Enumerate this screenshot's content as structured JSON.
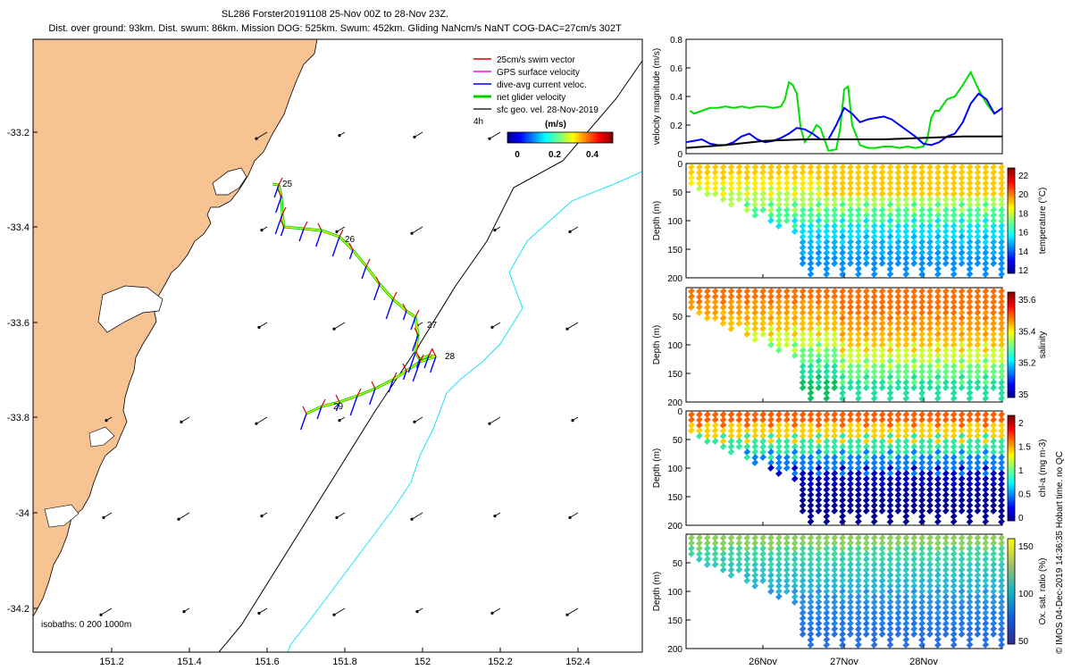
{
  "colors": {
    "land": "#f7c393",
    "track": "#000000",
    "ship_track": "#1ee0ff",
    "swim": "#d40000",
    "gps": "#ff00ff",
    "dac": "#0000ff",
    "net": "#00cc00",
    "sfc": "#000000"
  },
  "title": {
    "line1": "SL286 Forster20191108 25-Nov 00Z to 28-Nov 23Z.",
    "line2": "Dist. over ground: 93km. Dist. swum: 86km. Mission DOG: 525km. Swum: 452km. Gliding NaNcm/s NaNT COG-DAC=27cm/s 302T"
  },
  "map": {
    "x_ticks": [
      "151.2",
      "151.4",
      "151.6",
      "151.8",
      "152",
      "152.2",
      "152.4"
    ],
    "y_ticks": [
      "-33.2",
      "-33.4",
      "-33.6",
      "-33.8",
      "-34",
      "-34.2"
    ],
    "day_labels": [
      "25",
      "26",
      "27",
      "28",
      "29"
    ],
    "legend": {
      "items": [
        "25cm/s swim vector",
        "GPS surface velocity",
        "dive-avg current veloc.",
        "net glider velocity",
        "sfc geo. vel. 28-Nov-2019"
      ],
      "timestep": "4h",
      "units": "(m/s)",
      "colorbar_ticks": [
        "0",
        "0.2",
        "0.4"
      ]
    },
    "isobaths": "isobaths: 0   200  1000m"
  },
  "chart_data": [
    {
      "type": "line",
      "title": "",
      "ylabel": "velocity magnitude (m/s)",
      "ylim": [
        0,
        0.8
      ],
      "yticks": [
        "0",
        "0.2",
        "0.4",
        "0.6",
        "0.8"
      ],
      "x_range_days": [
        25.0,
        29.0
      ],
      "series": [
        {
          "name": "net glider velocity",
          "color": "#00dd00",
          "x": [
            25.05,
            25.1,
            25.2,
            25.3,
            25.4,
            25.5,
            25.6,
            25.7,
            25.8,
            25.9,
            26.0,
            26.1,
            26.2,
            26.25,
            26.3,
            26.35,
            26.4,
            26.45,
            26.5,
            26.6,
            26.65,
            26.7,
            26.8,
            26.9,
            26.95,
            27.0,
            27.05,
            27.1,
            27.2,
            27.3,
            27.4,
            27.5,
            27.6,
            27.7,
            27.8,
            27.9,
            28.0,
            28.05,
            28.1,
            28.15,
            28.2,
            28.3,
            28.4,
            28.5,
            28.6,
            28.7,
            28.8,
            28.9,
            28.95
          ],
          "values": [
            0.3,
            0.28,
            0.3,
            0.32,
            0.32,
            0.33,
            0.32,
            0.33,
            0.32,
            0.33,
            0.33,
            0.32,
            0.33,
            0.38,
            0.5,
            0.48,
            0.42,
            0.18,
            0.08,
            0.15,
            0.2,
            0.18,
            0.02,
            0.03,
            0.18,
            0.45,
            0.47,
            0.2,
            0.06,
            0.04,
            0.04,
            0.05,
            0.05,
            0.04,
            0.05,
            0.04,
            0.05,
            0.1,
            0.25,
            0.3,
            0.3,
            0.38,
            0.4,
            0.48,
            0.57,
            0.45,
            0.35,
            0.28,
            0.3
          ]
        },
        {
          "name": "dive-avg current veloc.",
          "color": "#0000ff",
          "x": [
            25.0,
            25.1,
            25.2,
            25.3,
            25.4,
            25.5,
            25.6,
            25.7,
            25.8,
            25.9,
            26.0,
            26.1,
            26.2,
            26.3,
            26.4,
            26.5,
            26.6,
            26.7,
            26.8,
            26.9,
            27.0,
            27.1,
            27.2,
            27.3,
            27.4,
            27.5,
            27.6,
            27.7,
            27.8,
            27.9,
            28.0,
            28.1,
            28.2,
            28.3,
            28.4,
            28.5,
            28.6,
            28.7,
            28.8,
            28.9,
            29.0
          ],
          "values": [
            0.08,
            0.09,
            0.1,
            0.07,
            0.06,
            0.06,
            0.08,
            0.12,
            0.14,
            0.1,
            0.08,
            0.09,
            0.11,
            0.14,
            0.18,
            0.17,
            0.14,
            0.1,
            0.1,
            0.2,
            0.32,
            0.28,
            0.22,
            0.24,
            0.25,
            0.26,
            0.24,
            0.2,
            0.16,
            0.12,
            0.07,
            0.06,
            0.08,
            0.12,
            0.14,
            0.22,
            0.35,
            0.42,
            0.38,
            0.28,
            0.32
          ]
        },
        {
          "name": "sfc geo. vel.",
          "color": "#000000",
          "x": [
            25.0,
            25.5,
            26.0,
            26.5,
            27.0,
            27.5,
            28.0,
            28.5,
            29.0
          ],
          "values": [
            0.04,
            0.06,
            0.09,
            0.1,
            0.1,
            0.1,
            0.11,
            0.12,
            0.12
          ]
        }
      ]
    },
    {
      "type": "heatmap",
      "ylabel": "Depth (m)",
      "colorbar_label": "temperature (°C)",
      "yticks": [
        "0",
        "50",
        "100",
        "150",
        "200"
      ],
      "cbar_ticks": [
        "12",
        "14",
        "16",
        "18",
        "20",
        "22"
      ]
    },
    {
      "type": "heatmap",
      "ylabel": "Depth (m)",
      "colorbar_label": "salinity",
      "yticks": [
        "50",
        "100",
        "150",
        "200"
      ],
      "cbar_ticks": [
        "35",
        "35.2",
        "35.4",
        "35.6"
      ]
    },
    {
      "type": "heatmap",
      "ylabel": "Depth (m)",
      "colorbar_label": "chl-a (mg m-3)",
      "yticks": [
        "0",
        "50",
        "100",
        "150",
        "200"
      ],
      "cbar_ticks": [
        "0",
        "0.5",
        "1",
        "1.5",
        "2"
      ]
    },
    {
      "type": "heatmap",
      "ylabel": "Depth (m)",
      "colorbar_label": "Ox. sat. ratio (%)",
      "yticks": [
        "50",
        "100",
        "150",
        "200"
      ],
      "cbar_ticks": [
        "50",
        "100",
        "150"
      ]
    }
  ],
  "x_axis_labels": [
    "26Nov",
    "27Nov",
    "28Nov"
  ],
  "footer": "© IMOS 04-Dec-2019 14:36:35 Hobart time. no QC"
}
